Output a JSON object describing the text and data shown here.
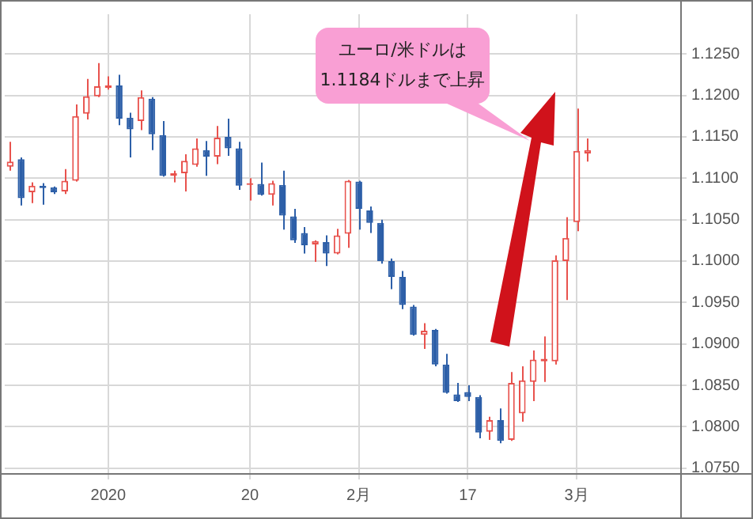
{
  "chart_data": {
    "type": "candlestick",
    "categories": [
      null,
      null,
      null,
      null,
      null,
      null,
      null,
      null,
      null,
      "2020",
      null,
      null,
      null,
      null,
      null,
      null,
      null,
      null,
      null,
      null,
      null,
      null,
      "20",
      null,
      null,
      null,
      null,
      null,
      null,
      null,
      null,
      null,
      "2月",
      null,
      null,
      null,
      null,
      null,
      null,
      null,
      null,
      null,
      "17",
      null,
      null,
      null,
      null,
      null,
      null,
      null,
      null,
      null,
      "3月",
      null,
      null,
      null,
      null,
      null,
      null,
      null,
      null,
      null
    ],
    "ohlc": [
      [
        1.1114,
        1.1144,
        1.1109,
        1.112
      ],
      [
        1.1123,
        1.1125,
        1.1067,
        1.1076
      ],
      [
        1.1083,
        1.1095,
        1.107,
        1.1091
      ],
      [
        1.1091,
        1.1094,
        1.1068,
        1.1088
      ],
      [
        1.1089,
        1.109,
        1.1081,
        1.1083
      ],
      [
        1.1084,
        1.1111,
        1.1081,
        1.1097
      ],
      [
        1.1097,
        1.1189,
        1.1096,
        1.1175
      ],
      [
        1.1178,
        1.122,
        1.1171,
        1.1199
      ],
      [
        1.1199,
        1.1239,
        1.1198,
        1.1211
      ],
      [
        1.1209,
        1.1223,
        1.1207,
        1.1212
      ],
      [
        1.1212,
        1.1225,
        1.1164,
        1.1172
      ],
      [
        1.1173,
        1.1179,
        1.1125,
        1.1159
      ],
      [
        1.1169,
        1.1206,
        1.1158,
        1.1198
      ],
      [
        1.1196,
        1.1198,
        1.1134,
        1.1153
      ],
      [
        1.1152,
        1.1169,
        1.1102,
        1.1103
      ],
      [
        1.1103,
        1.1109,
        1.1095,
        1.1106
      ],
      [
        1.1106,
        1.1129,
        1.1084,
        1.1121
      ],
      [
        1.1116,
        1.1148,
        1.1114,
        1.1136
      ],
      [
        1.1134,
        1.1145,
        1.1103,
        1.1126
      ],
      [
        1.1126,
        1.1163,
        1.1117,
        1.1149
      ],
      [
        1.115,
        1.1172,
        1.1127,
        1.1136
      ],
      [
        1.1136,
        1.1144,
        1.1086,
        1.1091
      ],
      [
        1.1092,
        1.11,
        1.1073,
        1.1094
      ],
      [
        1.1093,
        1.1119,
        1.1079,
        1.108
      ],
      [
        1.108,
        1.1097,
        1.1067,
        1.1094
      ],
      [
        1.1092,
        1.1109,
        1.1038,
        1.1055
      ],
      [
        1.1054,
        1.1063,
        1.1022,
        1.1025
      ],
      [
        1.1034,
        1.1041,
        1.1009,
        1.1019
      ],
      [
        1.102,
        1.1025,
        1.0999,
        1.1024
      ],
      [
        1.1023,
        1.1031,
        1.0994,
        1.1009
      ],
      [
        1.1009,
        1.1039,
        1.1008,
        1.1031
      ],
      [
        1.1033,
        1.1098,
        1.1016,
        1.1097
      ],
      [
        1.1096,
        1.1097,
        1.1038,
        1.1063
      ],
      [
        1.1061,
        1.1066,
        1.1034,
        1.1046
      ],
      [
        1.1046,
        1.105,
        1.0997,
        1.1
      ],
      [
        1.1,
        1.1003,
        1.0966,
        1.0981
      ],
      [
        1.0981,
        1.0988,
        1.0942,
        1.0947
      ],
      [
        1.0945,
        1.0947,
        1.091,
        1.0911
      ],
      [
        1.0911,
        1.0925,
        1.0894,
        1.0916
      ],
      [
        1.0917,
        1.0918,
        1.0873,
        1.0875
      ],
      [
        1.0875,
        1.0888,
        1.084,
        1.0841
      ],
      [
        1.0839,
        1.0853,
        1.083,
        1.0831
      ],
      [
        1.0842,
        1.085,
        1.0831,
        1.0836
      ],
      [
        1.0836,
        1.0838,
        1.0786,
        1.0793
      ],
      [
        1.0794,
        1.0812,
        1.0784,
        1.0808
      ],
      [
        1.0808,
        1.0822,
        1.078,
        1.0783
      ],
      [
        1.0784,
        1.0866,
        1.0783,
        1.0853
      ],
      [
        1.0816,
        1.0873,
        1.0806,
        1.0856
      ],
      [
        1.0854,
        1.0892,
        1.0831,
        1.0881
      ],
      [
        1.0879,
        1.0909,
        1.0854,
        1.0882
      ],
      [
        1.0879,
        1.1007,
        1.0875,
        1.1001
      ],
      [
        1.1,
        1.1053,
        1.0953,
        1.1028
      ],
      [
        1.1047,
        1.1184,
        1.1036,
        1.1133
      ],
      [
        1.113,
        1.1148,
        1.112,
        1.1134
      ],
      null,
      null,
      null,
      null,
      null,
      null,
      null,
      null
    ],
    "colors": [
      "#e8524d",
      "#2d5fa8",
      "#e8524d",
      "#2d5fa8",
      "#2d5fa8",
      "#e8524d",
      "#e8524d",
      "#e8524d",
      "#e8524d",
      "#e8524d",
      "#2d5fa8",
      "#2d5fa8",
      "#e8524d",
      "#2d5fa8",
      "#2d5fa8",
      "#e8524d",
      "#e8524d",
      "#e8524d",
      "#2d5fa8",
      "#e8524d",
      "#2d5fa8",
      "#2d5fa8",
      "#e8524d",
      "#2d5fa8",
      "#e8524d",
      "#2d5fa8",
      "#2d5fa8",
      "#2d5fa8",
      "#e8524d",
      "#2d5fa8",
      "#e8524d",
      "#e8524d",
      "#2d5fa8",
      "#2d5fa8",
      "#2d5fa8",
      "#2d5fa8",
      "#2d5fa8",
      "#2d5fa8",
      "#e8524d",
      "#2d5fa8",
      "#2d5fa8",
      "#2d5fa8",
      "#2d5fa8",
      "#2d5fa8",
      "#e8524d",
      "#2d5fa8",
      "#e8524d",
      "#e8524d",
      "#e8524d",
      "#e8524d",
      "#e8524d",
      "#e8524d",
      "#e8524d",
      "#e8524d",
      null,
      null,
      null,
      null,
      null,
      null,
      null,
      null
    ],
    "ylim": [
      1.0744,
      1.1298
    ],
    "yticks": [
      {
        "value": 1.075,
        "label": "1.0750"
      },
      {
        "value": 1.08,
        "label": "1.0800"
      },
      {
        "value": 1.085,
        "label": "1.0850"
      },
      {
        "value": 1.09,
        "label": "1.0900"
      },
      {
        "value": 1.095,
        "label": "1.0950"
      },
      {
        "value": 1.1,
        "label": "1.1000"
      },
      {
        "value": 1.105,
        "label": "1.1050"
      },
      {
        "value": 1.11,
        "label": "1.1100"
      },
      {
        "value": 1.115,
        "label": "1.1150"
      },
      {
        "value": 1.12,
        "label": "1.1200"
      },
      {
        "value": 1.125,
        "label": "1.1250"
      }
    ],
    "grid": true,
    "legend": false,
    "annotations": [
      "ユーロ/米ドルは\n1.1184ドルまで上昇"
    ]
  }
}
